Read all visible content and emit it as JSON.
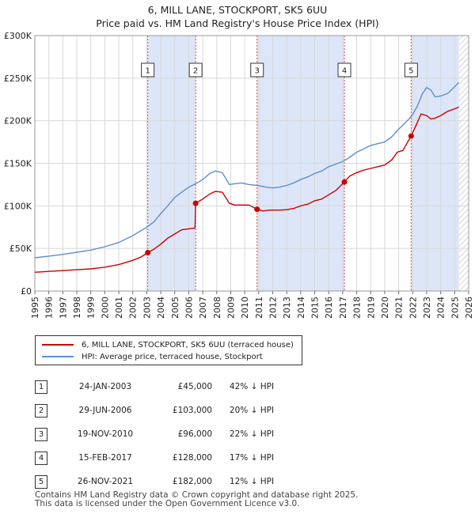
{
  "title_line1": "6, MILL LANE, STOCKPORT, SK5 6UU",
  "title_line2": "Price paid vs. HM Land Registry's House Price Index (HPI)",
  "chart_data": {
    "type": "line",
    "xlim": [
      1995,
      2026
    ],
    "ylim": [
      0,
      300000
    ],
    "y_ticks": [
      0,
      50000,
      100000,
      150000,
      200000,
      250000,
      300000
    ],
    "y_tick_labels": [
      "£0",
      "£50K",
      "£100K",
      "£150K",
      "£200K",
      "£250K",
      "£300K"
    ],
    "x_ticks": [
      1995,
      1996,
      1997,
      1998,
      1999,
      2000,
      2001,
      2002,
      2003,
      2004,
      2005,
      2006,
      2007,
      2008,
      2009,
      2010,
      2011,
      2012,
      2013,
      2014,
      2015,
      2016,
      2017,
      2018,
      2019,
      2020,
      2021,
      2022,
      2023,
      2024,
      2025,
      2026
    ],
    "colors": {
      "property": "#cc0000",
      "hpi": "#5b8fd1",
      "shade": "#dde6f8"
    },
    "hpi_series": {
      "name": "HPI: Average price, terraced house, Stockport",
      "x": [
        1995,
        1996,
        1997,
        1998,
        1999,
        2000,
        2001,
        2002,
        2003,
        2003.5,
        2004,
        2004.5,
        2005,
        2005.5,
        2006,
        2006.5,
        2007,
        2007.5,
        2007.9,
        2008.4,
        2008.9,
        2009.3,
        2009.8,
        2010.3,
        2010.9,
        2011.5,
        2012,
        2012.5,
        2013,
        2013.5,
        2014,
        2014.5,
        2015,
        2015.5,
        2016,
        2016.5,
        2017,
        2017.5,
        2018,
        2018.5,
        2019,
        2019.5,
        2020,
        2020.5,
        2021,
        2021.5,
        2021.9,
        2022.3,
        2022.7,
        2023,
        2023.3,
        2023.6,
        2024,
        2024.5,
        2025,
        2025.3
      ],
      "values": [
        39000,
        41000,
        43000,
        45500,
        48000,
        52000,
        57000,
        65000,
        75000,
        81000,
        91000,
        100000,
        110000,
        116000,
        122000,
        126000,
        131000,
        138000,
        141000,
        139000,
        125000,
        126000,
        127000,
        125000,
        124000,
        122000,
        121000,
        122000,
        124000,
        127000,
        131000,
        134000,
        138000,
        141000,
        146000,
        149000,
        152000,
        157000,
        163000,
        167000,
        171000,
        173000,
        175000,
        181000,
        190000,
        198000,
        205000,
        216000,
        232000,
        239000,
        236000,
        228000,
        229000,
        232000,
        240000,
        245000
      ]
    },
    "property_series": {
      "name": "6, MILL LANE, STOCKPORT, SK5 6UU (terraced house)",
      "x": [
        1995,
        1996,
        1997,
        1998,
        1999,
        2000,
        2001,
        2002,
        2002.6,
        2003.07,
        2003.5,
        2004,
        2004.5,
        2005,
        2005.5,
        2006,
        2006.45,
        2006.49,
        2007,
        2007.5,
        2007.9,
        2008.4,
        2008.9,
        2009.3,
        2009.8,
        2010.3,
        2010.88,
        2011.3,
        2011.8,
        2012.5,
        2013,
        2013.5,
        2014,
        2014.5,
        2015,
        2015.5,
        2016,
        2016.5,
        2017.12,
        2017.5,
        2018,
        2018.5,
        2019,
        2019.5,
        2020,
        2020.5,
        2020.9,
        2021.3,
        2021.89,
        2022.2,
        2022.6,
        2023,
        2023.3,
        2023.6,
        2024,
        2024.5,
        2025,
        2025.3
      ],
      "values": [
        22000,
        23000,
        24000,
        25000,
        26000,
        28000,
        31000,
        36000,
        40000,
        45000,
        49000,
        55000,
        62000,
        67000,
        72000,
        73000,
        74000,
        103000,
        108000,
        114000,
        117000,
        116000,
        103000,
        101000,
        101000,
        101000,
        96000,
        94000,
        95000,
        95000,
        95500,
        97000,
        100000,
        102000,
        106000,
        108000,
        113000,
        118000,
        128000,
        135000,
        139000,
        142000,
        144000,
        146000,
        148000,
        154000,
        163000,
        165000,
        182000,
        193000,
        208000,
        206000,
        202000,
        203000,
        206000,
        211000,
        214000,
        216000
      ]
    },
    "sales": [
      {
        "id": "1",
        "x": 2003.07,
        "value": 45000
      },
      {
        "id": "2",
        "x": 2006.49,
        "value": 103000
      },
      {
        "id": "3",
        "x": 2010.88,
        "value": 96000
      },
      {
        "id": "4",
        "x": 2017.12,
        "value": 128000
      },
      {
        "id": "5",
        "x": 2021.89,
        "value": 182000
      }
    ],
    "shaded_spans": [
      [
        2003.07,
        2006.49
      ],
      [
        2010.88,
        2017.12
      ],
      [
        2021.89,
        2025.3
      ]
    ],
    "hatch_from": 2025.3
  },
  "legend": {
    "property_label": "6, MILL LANE, STOCKPORT, SK5 6UU (terraced house)",
    "hpi_label": "HPI: Average price, terraced house, Stockport"
  },
  "transactions": [
    {
      "num": "1",
      "date": "24-JAN-2003",
      "price": "£45,000",
      "hpi": "42% ↓ HPI"
    },
    {
      "num": "2",
      "date": "29-JUN-2006",
      "price": "£103,000",
      "hpi": "20% ↓ HPI"
    },
    {
      "num": "3",
      "date": "19-NOV-2010",
      "price": "£96,000",
      "hpi": "22% ↓ HPI"
    },
    {
      "num": "4",
      "date": "15-FEB-2017",
      "price": "£128,000",
      "hpi": "17% ↓ HPI"
    },
    {
      "num": "5",
      "date": "26-NOV-2021",
      "price": "£182,000",
      "hpi": "12% ↓ HPI"
    }
  ],
  "footer_line1": "Contains HM Land Registry data © Crown copyright and database right 2025.",
  "footer_line2": "This data is licensed under the Open Government Licence v3.0."
}
